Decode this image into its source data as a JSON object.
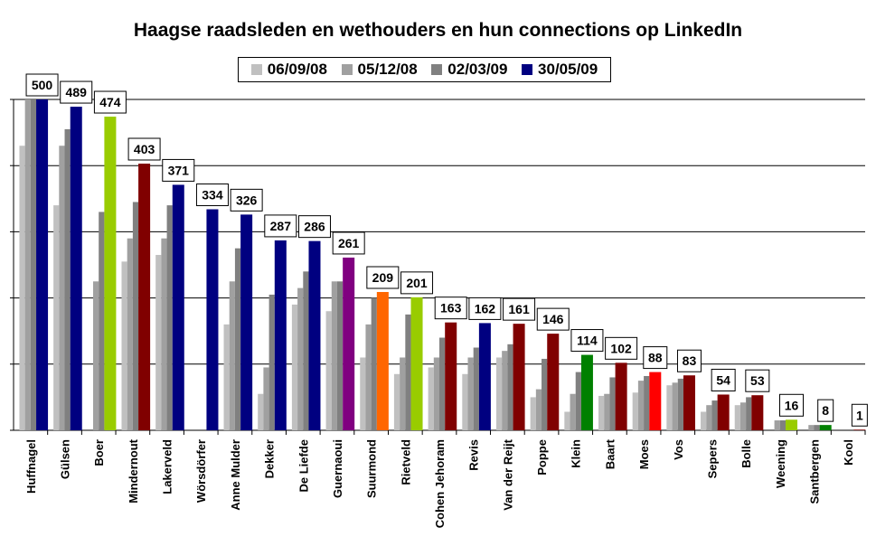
{
  "chart_data": {
    "type": "bar",
    "title": "Haagse raadsleden en wethouders en hun connections op LinkedIn",
    "xlabel": "",
    "ylabel": "",
    "ylim": [
      0,
      500
    ],
    "grid": true,
    "legend_position": "top",
    "categories": [
      "Huffnagel",
      "Gülsen",
      "Boer",
      "Mindernout",
      "Lakerveld",
      "Wörsdörfer",
      "Anne Mulder",
      "Dekker",
      "De Liefde",
      "Guernaoui",
      "Suurmond",
      "Rietveld",
      "Cohen Jehoram",
      "Revis",
      "Van der Reijt",
      "Poppe",
      "Klein",
      "Baart",
      "Moes",
      "Vos",
      "Sepers",
      "Bolle",
      "Weening",
      "Santbergen",
      "Kool"
    ],
    "series": [
      {
        "name": "06/09/08",
        "color": "#c0c0c0",
        "values": [
          430,
          340,
          0,
          255,
          265,
          0,
          160,
          55,
          190,
          180,
          110,
          85,
          95,
          85,
          110,
          50,
          28,
          52,
          57,
          68,
          28,
          38,
          0,
          0,
          0
        ]
      },
      {
        "name": "05/12/08",
        "color": "#a0a0a0",
        "values": [
          500,
          430,
          225,
          290,
          290,
          0,
          225,
          95,
          215,
          225,
          160,
          110,
          110,
          110,
          120,
          62,
          55,
          55,
          75,
          72,
          38,
          42,
          15,
          8,
          0
        ]
      },
      {
        "name": "02/03/09",
        "color": "#808080",
        "values": [
          500,
          455,
          330,
          345,
          340,
          0,
          275,
          205,
          240,
          225,
          200,
          175,
          140,
          125,
          130,
          108,
          88,
          80,
          82,
          78,
          45,
          50,
          15,
          8,
          0
        ]
      },
      {
        "name": "30/05/09",
        "color": "#000080",
        "values": [
          500,
          489,
          474,
          403,
          371,
          334,
          326,
          287,
          286,
          261,
          209,
          201,
          163,
          162,
          161,
          146,
          114,
          102,
          88,
          83,
          54,
          53,
          16,
          8,
          1
        ]
      }
    ],
    "last_bar_colors": [
      "#000080",
      "#000080",
      "#99cc00",
      "#800000",
      "#000080",
      "#000080",
      "#000080",
      "#000080",
      "#000080",
      "#800080",
      "#ff6600",
      "#99cc00",
      "#800000",
      "#000080",
      "#800000",
      "#800000",
      "#008000",
      "#800000",
      "#ff0000",
      "#800000",
      "#800000",
      "#800000",
      "#99cc00",
      "#008000",
      "#800000"
    ],
    "data_labels": [
      "500",
      "489",
      "474",
      "403",
      "371",
      "334",
      "326",
      "287",
      "286",
      "261",
      "209",
      "201",
      "163",
      "162",
      "161",
      "146",
      "114",
      "102",
      "88",
      "83",
      "54",
      "53",
      "16",
      "8",
      "1"
    ]
  }
}
